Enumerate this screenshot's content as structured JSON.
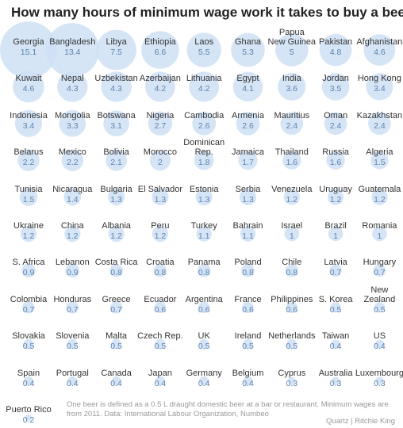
{
  "chart_data": {
    "type": "bubble-grid",
    "title": "How many hours of minimum wage work it takes to buy a beer",
    "color": "#cfe0f5",
    "categories": [
      "Georgia",
      "Bangladesh",
      "Libya",
      "Ethiopia",
      "Laos",
      "Ghana",
      "Papua\nNew Guinea",
      "Pakistan",
      "Afghanistan",
      "Kuwait",
      "Nepal",
      "Uzbekistan",
      "Azerbaijan",
      "Lithuania",
      "Egypt",
      "India",
      "Jordan",
      "Hong Kong",
      "Indonesia",
      "Mongolia",
      "Botswana",
      "Nigeria",
      "Cambodia",
      "Armenia",
      "Mauritius",
      "Oman",
      "Kazakhstan",
      "Belarus",
      "Mexico",
      "Bolivia",
      "Morocco",
      "Dominican\nRep.",
      "Jamaica",
      "Thailand",
      "Russia",
      "Algeria",
      "Tunisia",
      "Nicaragua",
      "Bulgaria",
      "El Salvador",
      "Estonia",
      "Serbia",
      "Venezuela",
      "Uruguay",
      "Guatemala",
      "Ukraine",
      "China",
      "Albania",
      "Peru",
      "Turkey",
      "Bahrain",
      "Israel",
      "Brazil",
      "Romania",
      "S. Africa",
      "Lebanon",
      "Costa Rica",
      "Croatia",
      "Panama",
      "Poland",
      "Chile",
      "Latvia",
      "Hungary",
      "Colombia",
      "Honduras",
      "Greece",
      "Ecuador",
      "Argentina",
      "France",
      "Philippines",
      "S. Korea",
      "New\nZealand",
      "Slovakia",
      "Slovenia",
      "Malta",
      "Czech Rep.",
      "UK",
      "Ireland",
      "Netherlands",
      "Taiwan",
      "US",
      "Spain",
      "Portugal",
      "Canada",
      "Japan",
      "Germany",
      "Belgium",
      "Cyprus",
      "Australia",
      "Luxembourg",
      "Puerto Rico"
    ],
    "values": [
      15.1,
      13.4,
      7.5,
      6.6,
      5.5,
      5.3,
      5,
      4.8,
      4.6,
      4.6,
      4.3,
      4.3,
      4.2,
      4.2,
      4.1,
      3.6,
      3.5,
      3.4,
      3.4,
      3.3,
      3.1,
      2.7,
      2.6,
      2.6,
      2.4,
      2.4,
      2.4,
      2.2,
      2.2,
      2.1,
      2,
      1.8,
      1.7,
      1.6,
      1.6,
      1.5,
      1.5,
      1.4,
      1.3,
      1.3,
      1.3,
      1.3,
      1.2,
      1.2,
      1.2,
      1.2,
      1.2,
      1.2,
      1.2,
      1.1,
      1.1,
      1,
      1,
      1,
      0.9,
      0.9,
      0.8,
      0.8,
      0.8,
      0.8,
      0.8,
      0.7,
      0.7,
      0.7,
      0.7,
      0.7,
      0.6,
      0.6,
      0.6,
      0.6,
      0.5,
      0.5,
      0.5,
      0.5,
      0.5,
      0.5,
      0.5,
      0.5,
      0.5,
      0.4,
      0.4,
      0.4,
      0.4,
      0.4,
      0.4,
      0.4,
      0.4,
      0.3,
      0.3,
      0.3,
      0.2
    ],
    "note": "One beer is defined as a 0.5 L draught domestic beer at a bar or restaurant. Minimum wages are from 2011. Data: International Labour Organization, Numbeo",
    "source": "Quartz | Ritchie King"
  }
}
